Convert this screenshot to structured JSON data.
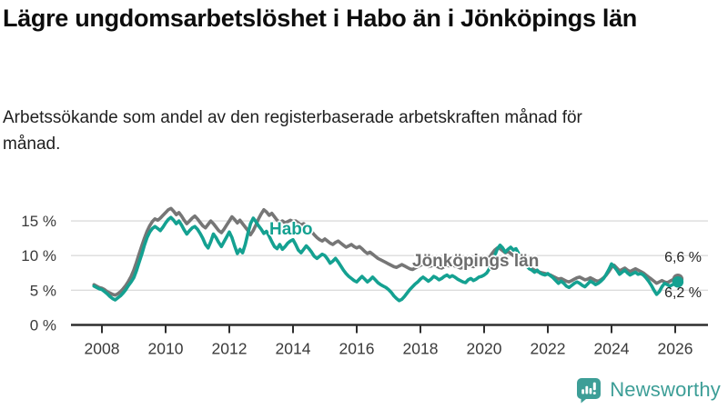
{
  "header": {
    "title": "Lägre ungdomsarbetslöshet i Habo än i Jönköpings län",
    "subtitle": "Arbetssökande som andel av den registerbaserade arbetskraften månad för månad."
  },
  "footer": {
    "brand": "Newsworthy",
    "brand_color": "#3d9e97",
    "logo_icon": "bar-chart-speech-bubble-icon"
  },
  "colors": {
    "habo": "#14a191",
    "jonkopings_lan": "#767676",
    "gridline": "#dcdcdc",
    "axis": "#2e2e2e",
    "tick_text": "#3a3a3a"
  },
  "chart_data": {
    "type": "line",
    "title": "Lägre ungdomsarbetslöshet i Habo än i Jönköpings län",
    "subtitle": "Arbetssökande som andel av den registerbaserade arbetskraften månad för månad.",
    "xlabel": "",
    "ylabel": "",
    "grid": "horizontal",
    "legend_position": "inline-labels",
    "x_unit": "month",
    "x_start_year": 2007.75,
    "x_range_years": [
      2007.75,
      2026.17
    ],
    "ylim": [
      0,
      17.5
    ],
    "x_ticks": [
      2008,
      2010,
      2012,
      2014,
      2016,
      2018,
      2020,
      2022,
      2024,
      2026
    ],
    "y_ticks": [
      0,
      5,
      10,
      15
    ],
    "y_tick_labels": [
      "0 %",
      "5 %",
      "10 %",
      "15 %"
    ],
    "end_value_labels": [
      "6,6 %",
      "6,2 %"
    ],
    "series": [
      {
        "name": "Jönköpings län",
        "color": "#767676",
        "end_value": 6.6,
        "values": [
          5.8,
          5.6,
          5.4,
          5.3,
          5.1,
          4.8,
          4.6,
          4.4,
          4.3,
          4.5,
          4.8,
          5.2,
          5.7,
          6.3,
          7.0,
          7.9,
          9.0,
          10.2,
          11.4,
          12.5,
          13.5,
          14.3,
          14.9,
          15.3,
          15.1,
          15.4,
          15.8,
          16.2,
          16.6,
          16.8,
          16.4,
          15.9,
          16.2,
          15.7,
          15.1,
          14.6,
          15.0,
          15.4,
          15.7,
          15.3,
          14.8,
          14.3,
          14.0,
          14.5,
          15.0,
          14.6,
          14.1,
          13.6,
          13.3,
          13.8,
          14.4,
          15.0,
          15.6,
          15.2,
          14.7,
          15.1,
          14.6,
          14.1,
          13.6,
          13.0,
          13.6,
          14.4,
          15.3,
          16.0,
          16.6,
          16.3,
          15.8,
          16.1,
          15.6,
          15.1,
          14.8,
          15.0,
          14.7,
          14.9,
          15.1,
          14.9,
          15.0,
          14.7,
          14.4,
          14.6,
          14.3,
          13.9,
          13.5,
          13.0,
          12.6,
          12.3,
          12.1,
          12.4,
          12.1,
          11.8,
          11.6,
          11.9,
          12.1,
          11.8,
          11.5,
          11.2,
          11.4,
          11.6,
          11.3,
          11.1,
          11.3,
          11.0,
          10.6,
          10.3,
          10.5,
          10.2,
          9.9,
          9.6,
          9.4,
          9.2,
          9.0,
          8.8,
          8.6,
          8.4,
          8.3,
          8.5,
          8.7,
          8.5,
          8.3,
          8.1,
          8.0,
          8.2,
          8.4,
          8.6,
          8.8,
          8.6,
          8.4,
          8.5,
          8.7,
          8.5,
          8.3,
          8.2,
          8.4,
          8.6,
          8.5,
          8.7,
          8.5,
          8.4,
          8.2,
          8.3,
          8.5,
          8.7,
          8.5,
          8.4,
          8.6,
          8.8,
          9.0,
          9.1,
          9.3,
          9.7,
          10.3,
          10.8,
          11.1,
          11.0,
          10.7,
          10.4,
          10.6,
          10.3,
          10.0,
          9.8,
          9.5,
          9.2,
          8.9,
          8.6,
          8.3,
          8.1,
          7.9,
          7.7,
          7.6,
          7.5,
          7.4,
          7.3,
          7.2,
          7.0,
          6.8,
          6.6,
          6.7,
          6.5,
          6.3,
          6.2,
          6.4,
          6.6,
          6.8,
          6.9,
          6.7,
          6.5,
          6.6,
          6.8,
          6.6,
          6.4,
          6.3,
          6.5,
          6.8,
          7.2,
          7.7,
          8.3,
          8.6,
          8.2,
          7.8,
          8.0,
          8.2,
          7.9,
          7.7,
          7.9,
          8.1,
          7.9,
          7.7,
          7.5,
          7.2,
          6.9,
          6.6,
          6.3,
          6.0,
          6.2,
          6.4,
          6.2,
          6.1,
          6.3,
          6.5,
          6.5,
          6.6
        ]
      },
      {
        "name": "Habo",
        "color": "#14a191",
        "end_value": 6.2,
        "values": [
          5.6,
          5.4,
          5.2,
          5.1,
          4.8,
          4.5,
          4.1,
          3.8,
          3.6,
          3.9,
          4.2,
          4.6,
          5.1,
          5.7,
          6.2,
          6.8,
          7.8,
          9.0,
          10.2,
          11.5,
          12.6,
          13.4,
          13.9,
          14.2,
          13.9,
          13.6,
          14.1,
          14.7,
          15.2,
          15.5,
          15.1,
          14.6,
          15.0,
          14.4,
          13.7,
          13.1,
          13.6,
          14.0,
          14.2,
          13.8,
          13.2,
          12.5,
          11.6,
          11.1,
          12.0,
          13.1,
          12.6,
          11.9,
          11.3,
          12.0,
          12.7,
          13.4,
          12.6,
          11.4,
          10.3,
          10.9,
          10.4,
          11.6,
          13.2,
          14.6,
          15.4,
          14.9,
          14.3,
          13.8,
          13.2,
          13.5,
          12.8,
          12.0,
          11.3,
          11.0,
          11.6,
          10.9,
          11.3,
          11.8,
          12.1,
          12.3,
          11.6,
          10.8,
          10.4,
          10.9,
          11.4,
          11.0,
          10.5,
          9.9,
          9.6,
          9.9,
          10.2,
          10.0,
          9.5,
          8.9,
          9.2,
          9.6,
          9.1,
          8.5,
          7.9,
          7.4,
          7.0,
          6.7,
          6.4,
          6.2,
          6.6,
          7.0,
          6.6,
          6.2,
          6.5,
          6.9,
          6.5,
          6.1,
          5.8,
          5.6,
          5.4,
          5.1,
          4.7,
          4.2,
          3.8,
          3.5,
          3.7,
          4.1,
          4.6,
          5.1,
          5.5,
          5.9,
          6.2,
          6.6,
          6.9,
          6.6,
          6.3,
          6.6,
          7.0,
          6.8,
          6.5,
          6.7,
          7.0,
          7.2,
          6.9,
          7.1,
          6.9,
          6.6,
          6.4,
          6.2,
          6.1,
          6.5,
          6.7,
          6.4,
          6.6,
          6.9,
          7.0,
          7.2,
          7.5,
          8.1,
          9.0,
          10.0,
          11.0,
          11.5,
          11.1,
          10.5,
          10.9,
          11.2,
          10.8,
          11.0,
          10.3,
          9.6,
          9.0,
          8.5,
          8.1,
          7.9,
          7.6,
          7.9,
          7.5,
          7.3,
          7.2,
          7.4,
          7.1,
          6.8,
          6.4,
          6.0,
          6.3,
          6.0,
          5.6,
          5.4,
          5.7,
          6.0,
          6.2,
          6.0,
          5.7,
          5.5,
          5.9,
          6.3,
          6.1,
          5.8,
          6.0,
          6.3,
          6.7,
          7.3,
          8.0,
          8.8,
          8.4,
          7.9,
          7.3,
          7.6,
          7.9,
          7.5,
          7.2,
          7.4,
          7.6,
          7.3,
          7.4,
          7.2,
          6.8,
          6.3,
          5.7,
          5.0,
          4.4,
          4.8,
          5.5,
          6.0,
          5.8,
          5.6,
          5.8,
          6.0,
          6.2
        ]
      }
    ]
  }
}
